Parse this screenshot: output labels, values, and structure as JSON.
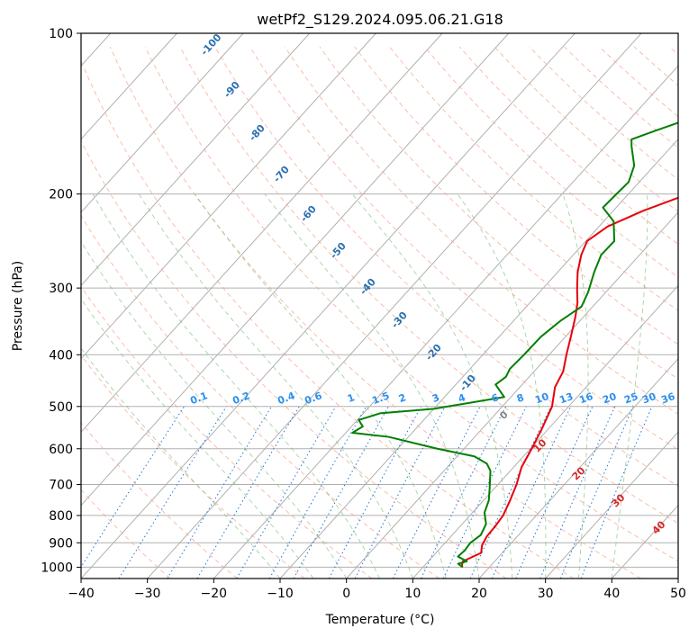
{
  "chart_data": {
    "type": "line",
    "title": "wetPf2_S129.2024.095.06.21.G18",
    "xlabel": "Temperature (°C)",
    "ylabel": "Pressure (hPa)",
    "xlim": [
      -40,
      50
    ],
    "ylim": [
      1050,
      100
    ],
    "y_scale": "log",
    "grid": true,
    "x_ticks": [
      -40,
      -30,
      -20,
      -10,
      0,
      10,
      20,
      30,
      40,
      50
    ],
    "y_ticks": [
      1000,
      900,
      800,
      700,
      600,
      500,
      400,
      300,
      200,
      100
    ],
    "series": [
      {
        "color": "#e8000b",
        "style": "solid",
        "points": [
          [
            15.8,
            1000
          ],
          [
            15.2,
            975
          ],
          [
            16.8,
            940
          ],
          [
            15.9,
            910
          ],
          [
            15.4,
            875
          ],
          [
            15.3,
            840
          ],
          [
            15.0,
            800
          ],
          [
            14.0,
            750
          ],
          [
            12.8,
            700
          ],
          [
            11.2,
            650
          ],
          [
            10.2,
            600
          ],
          [
            9.0,
            550
          ],
          [
            7.5,
            500
          ],
          [
            5.3,
            460
          ],
          [
            4.4,
            430
          ],
          [
            2.6,
            400
          ],
          [
            0.8,
            370
          ],
          [
            -1.2,
            340
          ],
          [
            -2.8,
            320
          ],
          [
            -4.9,
            300
          ],
          [
            -7.0,
            280
          ],
          [
            -8.8,
            260
          ],
          [
            -9.8,
            245
          ],
          [
            -8.7,
            230
          ],
          [
            -5.5,
            215
          ],
          [
            -1.0,
            200
          ],
          [
            4.5,
            180
          ],
          [
            10.0,
            163
          ],
          [
            15.5,
            150
          ],
          [
            19.0,
            140
          ],
          [
            20.2,
            130
          ],
          [
            20.5,
            120
          ],
          [
            20.2,
            113
          ],
          [
            22.0,
            105
          ],
          [
            23.0,
            100
          ]
        ]
      },
      {
        "color": "#007f00",
        "style": "solid",
        "points": [
          [
            16.0,
            1000
          ],
          [
            14.8,
            985
          ],
          [
            15.8,
            975
          ],
          [
            13.8,
            955
          ],
          [
            14.0,
            930
          ],
          [
            13.8,
            900
          ],
          [
            14.3,
            870
          ],
          [
            13.6,
            830
          ],
          [
            11.8,
            790
          ],
          [
            10.8,
            750
          ],
          [
            9.2,
            710
          ],
          [
            7.0,
            660
          ],
          [
            5.5,
            640
          ],
          [
            2.6,
            620
          ],
          [
            -4.0,
            600
          ],
          [
            -13.0,
            570
          ],
          [
            -19.0,
            560
          ],
          [
            -18.3,
            545
          ],
          [
            -19.8,
            530
          ],
          [
            -17.5,
            515
          ],
          [
            -10.0,
            505
          ],
          [
            -1.0,
            480
          ],
          [
            -4.0,
            455
          ],
          [
            -3.5,
            440
          ],
          [
            -4.0,
            425
          ],
          [
            -3.8,
            400
          ],
          [
            -3.7,
            370
          ],
          [
            -2.9,
            345
          ],
          [
            -1.7,
            325
          ],
          [
            -2.7,
            305
          ],
          [
            -4.5,
            280
          ],
          [
            -5.8,
            260
          ],
          [
            -5.7,
            245
          ],
          [
            -8.5,
            225
          ],
          [
            -12.0,
            212
          ],
          [
            -11.8,
            200
          ],
          [
            -11.6,
            190
          ],
          [
            -13.0,
            177
          ],
          [
            -16.0,
            163
          ],
          [
            -17.0,
            158
          ],
          [
            -14.5,
            152
          ],
          [
            -9.8,
            142
          ],
          [
            -8.3,
            134
          ],
          [
            -7.5,
            127
          ],
          [
            -6.0,
            115
          ],
          [
            -1.2,
            100
          ]
        ]
      }
    ],
    "dry_adiabat_labels": [
      "-100",
      "-90",
      "-80",
      "-70",
      "-60",
      "-50",
      "-40",
      "-30",
      "-20",
      "-10"
    ],
    "mixing_ratio_labels": [
      "0.1",
      "0.2",
      "0.4",
      "0.6",
      "1",
      "1.5",
      "2",
      "3",
      "4",
      "6",
      "8",
      "10",
      "13",
      "16",
      "20",
      "25",
      "30",
      "36"
    ],
    "moist_adiabat_labels": [
      "0",
      "10",
      "20",
      "30",
      "40"
    ]
  }
}
